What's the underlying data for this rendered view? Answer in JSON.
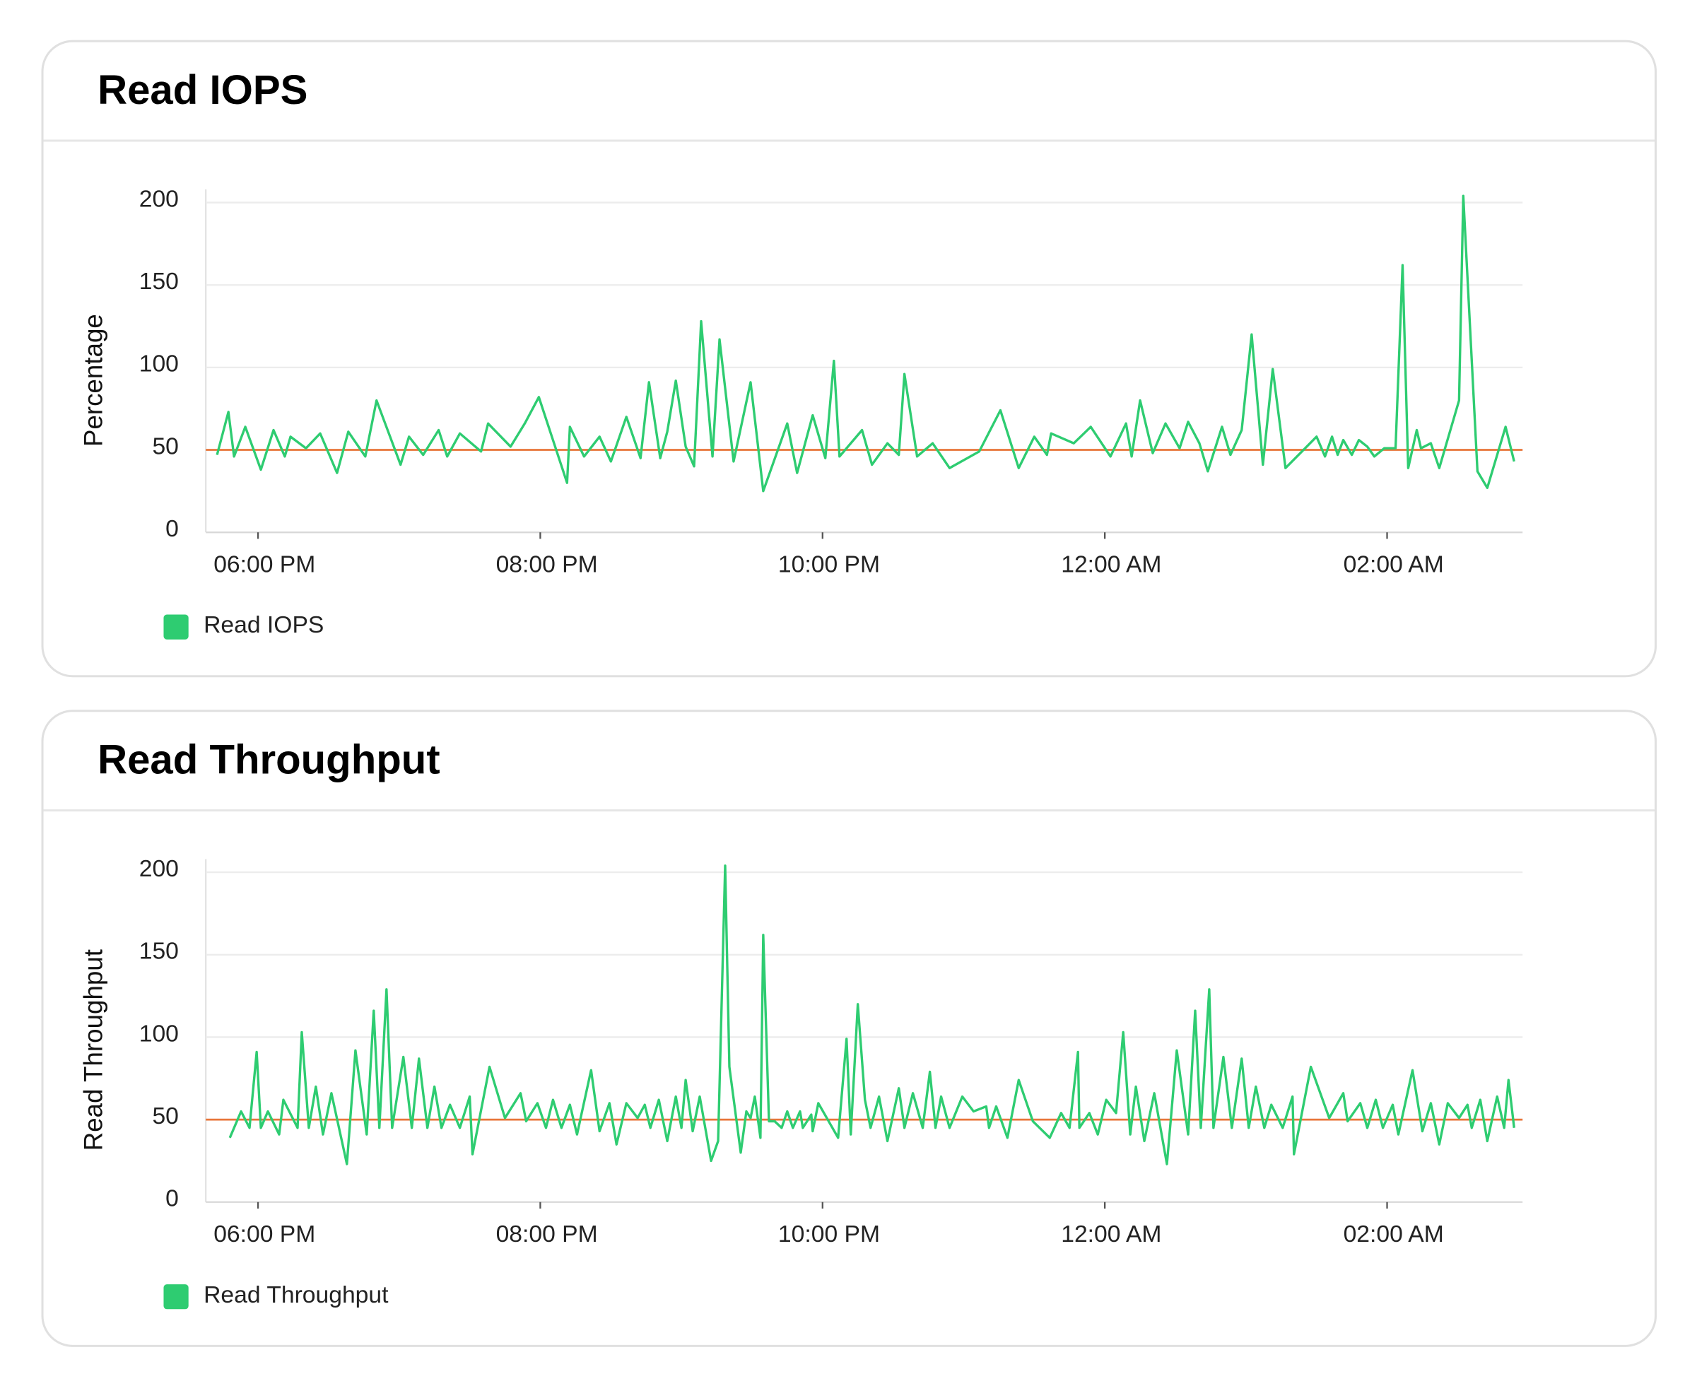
{
  "chart_data": [
    {
      "type": "line",
      "title": "Read IOPS",
      "ylabel": "Percentage",
      "x": [
        17.71,
        17.79,
        17.83,
        17.91,
        18.02,
        18.11,
        18.19,
        18.23,
        18.34,
        18.44,
        18.56,
        18.64,
        18.76,
        18.84,
        19.01,
        19.07,
        19.17,
        19.28,
        19.34,
        19.43,
        19.58,
        19.63,
        19.79,
        19.89,
        19.99,
        20.19,
        20.21,
        20.31,
        20.42,
        20.5,
        20.61,
        20.71,
        20.77,
        20.85,
        20.9,
        20.96,
        21.03,
        21.09,
        21.14,
        21.22,
        21.27,
        21.37,
        21.49,
        21.58,
        21.75,
        21.82,
        21.93,
        22.02,
        22.08,
        22.12,
        22.28,
        22.35,
        22.46,
        22.54,
        22.58,
        22.67,
        22.78,
        22.9,
        23.11,
        23.26,
        23.39,
        23.5,
        23.59,
        23.62,
        23.78,
        23.9,
        24.04,
        24.15,
        24.19,
        24.25,
        24.34,
        24.43,
        24.53,
        24.59,
        24.67,
        24.73,
        24.83,
        24.89,
        24.97,
        25.04,
        25.12,
        25.19,
        25.28,
        25.5,
        25.56,
        25.61,
        25.65,
        25.69,
        25.75,
        25.8,
        25.86,
        25.91,
        25.98,
        26.06,
        26.11,
        26.15,
        26.21,
        26.24,
        26.31,
        26.37,
        26.51,
        26.54,
        26.64,
        26.71,
        26.84,
        26.9
      ],
      "series": [
        {
          "name": "Read IOPS",
          "color": "#2ecc71",
          "values": [
            47,
            73,
            46,
            64,
            38,
            62,
            46,
            58,
            51,
            60,
            36,
            61,
            46,
            80,
            41,
            58,
            47,
            62,
            46,
            60,
            49,
            66,
            52,
            66,
            82,
            30,
            64,
            46,
            58,
            43,
            70,
            45,
            91,
            45,
            61,
            92,
            52,
            40,
            128,
            46,
            117,
            43,
            91,
            25,
            66,
            36,
            71,
            45,
            104,
            46,
            62,
            41,
            54,
            47,
            96,
            46,
            54,
            39,
            49,
            74,
            39,
            58,
            47,
            60,
            54,
            64,
            46,
            66,
            46,
            80,
            48,
            66,
            51,
            67,
            54,
            37,
            64,
            47,
            62,
            120,
            41,
            99,
            39,
            58,
            46,
            58,
            47,
            56,
            47,
            56,
            52,
            46,
            51,
            51,
            162,
            39,
            62,
            51,
            54,
            39,
            80,
            204,
            37,
            27,
            64,
            43
          ]
        }
      ],
      "threshold": 50,
      "threshold_color": "#e8763a",
      "xlim": [
        17.63,
        26.96
      ],
      "xticks": [
        {
          "value": 18,
          "label": "06:00 PM"
        },
        {
          "value": 20,
          "label": "08:00 PM"
        },
        {
          "value": 22,
          "label": "10:00 PM"
        },
        {
          "value": 24,
          "label": "12:00 AM"
        },
        {
          "value": 26,
          "label": "02:00 AM"
        }
      ],
      "ylim": [
        0,
        208
      ],
      "yticks": [
        0,
        50,
        100,
        150,
        200
      ],
      "grid": true
    },
    {
      "type": "line",
      "title": "Read Throughput",
      "ylabel": "Read Throughput",
      "x": [
        17.8,
        17.88,
        17.94,
        17.99,
        18.02,
        18.07,
        18.15,
        18.18,
        18.28,
        18.31,
        18.36,
        18.41,
        18.46,
        18.52,
        18.63,
        18.69,
        18.77,
        18.82,
        18.86,
        18.91,
        18.95,
        19.03,
        19.09,
        19.14,
        19.2,
        19.25,
        19.3,
        19.36,
        19.43,
        19.5,
        19.52,
        19.64,
        19.75,
        19.86,
        19.9,
        19.98,
        20.04,
        20.09,
        20.15,
        20.21,
        20.26,
        20.36,
        20.42,
        20.49,
        20.54,
        20.61,
        20.69,
        20.74,
        20.78,
        20.84,
        20.9,
        20.96,
        21.0,
        21.03,
        21.08,
        21.13,
        21.21,
        21.26,
        21.31,
        21.34,
        21.42,
        21.46,
        21.49,
        21.52,
        21.56,
        21.58,
        21.62,
        21.66,
        21.71,
        21.75,
        21.79,
        21.84,
        21.86,
        21.92,
        21.93,
        21.97,
        22.11,
        22.17,
        22.2,
        22.25,
        22.3,
        22.34,
        22.4,
        22.46,
        22.54,
        22.58,
        22.64,
        22.71,
        22.76,
        22.8,
        22.84,
        22.9,
        22.99,
        23.07,
        23.16,
        23.18,
        23.23,
        23.31,
        23.39,
        23.49,
        23.61,
        23.69,
        23.75,
        23.81,
        23.82,
        23.89,
        23.95,
        24.01,
        24.08,
        24.13,
        24.18,
        24.22,
        24.28,
        24.35,
        24.44,
        24.51,
        24.59,
        24.64,
        24.68,
        24.74,
        24.77,
        24.84,
        24.9,
        24.97,
        25.02,
        25.07,
        25.13,
        25.18,
        25.26,
        25.33,
        25.34,
        25.46,
        25.59,
        25.69,
        25.72,
        25.81,
        25.86,
        25.92,
        25.97,
        26.04,
        26.08,
        26.18,
        26.25,
        26.31,
        26.37,
        26.43,
        26.51,
        26.57,
        26.6,
        26.66,
        26.71,
        26.78,
        26.83,
        26.86,
        26.9
      ],
      "series": [
        {
          "name": "Read Throughput",
          "color": "#2ecc71",
          "values": [
            39,
            55,
            45,
            91,
            45,
            55,
            41,
            62,
            45,
            103,
            45,
            70,
            41,
            66,
            23,
            92,
            41,
            116,
            45,
            129,
            45,
            88,
            45,
            87,
            45,
            70,
            45,
            59,
            45,
            64,
            29,
            82,
            51,
            66,
            49,
            60,
            45,
            62,
            45,
            59,
            41,
            80,
            43,
            60,
            35,
            60,
            51,
            59,
            45,
            62,
            37,
            64,
            45,
            74,
            43,
            64,
            25,
            37,
            204,
            82,
            30,
            55,
            51,
            64,
            39,
            162,
            49,
            49,
            45,
            55,
            45,
            55,
            45,
            53,
            43,
            60,
            39,
            99,
            41,
            120,
            62,
            45,
            64,
            37,
            69,
            45,
            66,
            45,
            79,
            45,
            64,
            45,
            64,
            55,
            58,
            45,
            58,
            39,
            74,
            49,
            39,
            54,
            45,
            91,
            45,
            54,
            41,
            62,
            54,
            103,
            41,
            70,
            37,
            66,
            23,
            92,
            41,
            116,
            45,
            129,
            45,
            88,
            45,
            87,
            45,
            70,
            45,
            59,
            45,
            64,
            29,
            82,
            51,
            66,
            49,
            60,
            45,
            62,
            45,
            59,
            41,
            80,
            43,
            60,
            35,
            60,
            51,
            59,
            45,
            62,
            37,
            64,
            45,
            74,
            45
          ]
        }
      ],
      "threshold": 50,
      "threshold_color": "#e8763a",
      "xlim": [
        17.63,
        26.96
      ],
      "xticks": [
        {
          "value": 18,
          "label": "06:00 PM"
        },
        {
          "value": 20,
          "label": "08:00 PM"
        },
        {
          "value": 22,
          "label": "10:00 PM"
        },
        {
          "value": 24,
          "label": "12:00 AM"
        },
        {
          "value": 26,
          "label": "02:00 AM"
        }
      ],
      "ylim": [
        0,
        208
      ],
      "yticks": [
        0,
        50,
        100,
        150,
        200
      ],
      "grid": true
    }
  ]
}
